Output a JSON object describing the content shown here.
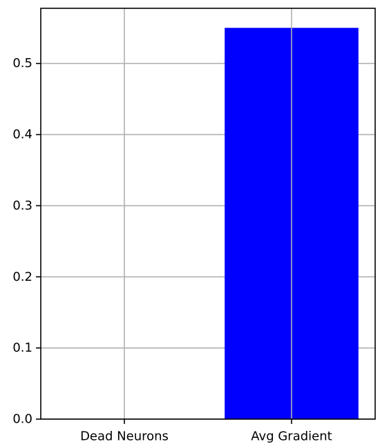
{
  "chart_data": {
    "type": "bar",
    "title": "",
    "xlabel": "",
    "ylabel": "",
    "categories": [
      "Dead Neurons",
      "Avg Gradient"
    ],
    "values": [
      0.0,
      0.55
    ],
    "ylim": [
      0,
      0.5775
    ],
    "yticks": [
      "0.0",
      "0.1",
      "0.2",
      "0.3",
      "0.4",
      "0.5"
    ],
    "grid": true,
    "bar_color": "#0000ff",
    "grid_color": "#b0b0b0",
    "axis_color": "#000000"
  }
}
